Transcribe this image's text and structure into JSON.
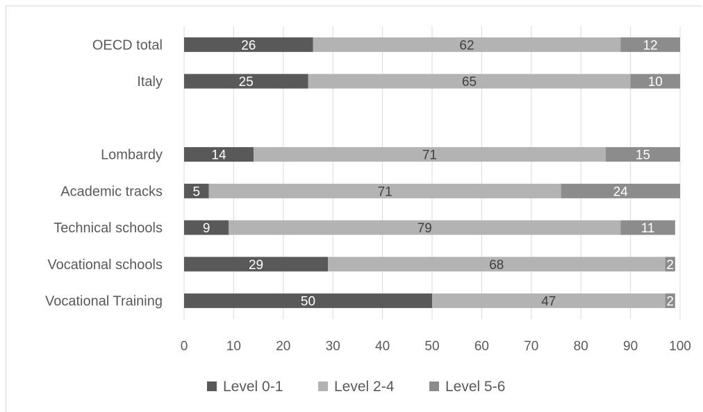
{
  "chart_data": {
    "type": "bar",
    "orientation": "horizontal",
    "stacked": true,
    "categories": [
      "OECD total",
      "Italy",
      "",
      "Lombardy",
      "Academic tracks",
      "Technical schools",
      "Vocational schools",
      "Vocational Training"
    ],
    "series": [
      {
        "name": "Level 0-1",
        "color": "#595959",
        "values": [
          26,
          25,
          null,
          14,
          5,
          9,
          29,
          50
        ]
      },
      {
        "name": "Level 2-4",
        "color": "#b3b3b3",
        "values": [
          62,
          65,
          null,
          71,
          71,
          79,
          68,
          47
        ]
      },
      {
        "name": "Level 5-6",
        "color": "#8c8c8c",
        "values": [
          12,
          10,
          null,
          15,
          24,
          11,
          2,
          2
        ]
      }
    ],
    "xlim": [
      0,
      100
    ],
    "xticks": [
      0,
      10,
      20,
      30,
      40,
      50,
      60,
      70,
      80,
      90,
      100
    ],
    "grid": true,
    "legend_position": "bottom",
    "data_labels": true
  }
}
